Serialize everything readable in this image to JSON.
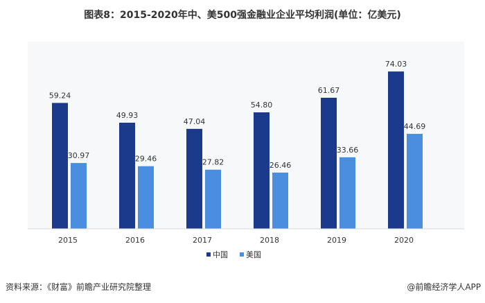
{
  "chart_data": {
    "type": "bar",
    "title": "图表8：2015-2020年中、美500强金融业企业平均利润(单位：亿美元)",
    "categories": [
      "2015",
      "2016",
      "2017",
      "2018",
      "2019",
      "2020"
    ],
    "series": [
      {
        "name": "中国",
        "color": "#1b3a8c",
        "values": [
          59.24,
          49.93,
          47.04,
          54.8,
          61.67,
          74.03
        ],
        "labels": [
          "59.24",
          "49.93",
          "47.04",
          "54.80",
          "61.67",
          "74.03"
        ]
      },
      {
        "name": "美国",
        "color": "#4a8ee0",
        "values": [
          30.97,
          29.46,
          27.82,
          26.46,
          33.66,
          44.69
        ],
        "labels": [
          "30.97",
          "29.46",
          "27.82",
          "26.46",
          "33.66",
          "44.69"
        ]
      }
    ],
    "legend": "bottom",
    "grid": false
  },
  "footer": {
    "source": "资料来源：《财富》前瞻产业研究院整理",
    "credit": "@前瞻经济学人APP"
  }
}
